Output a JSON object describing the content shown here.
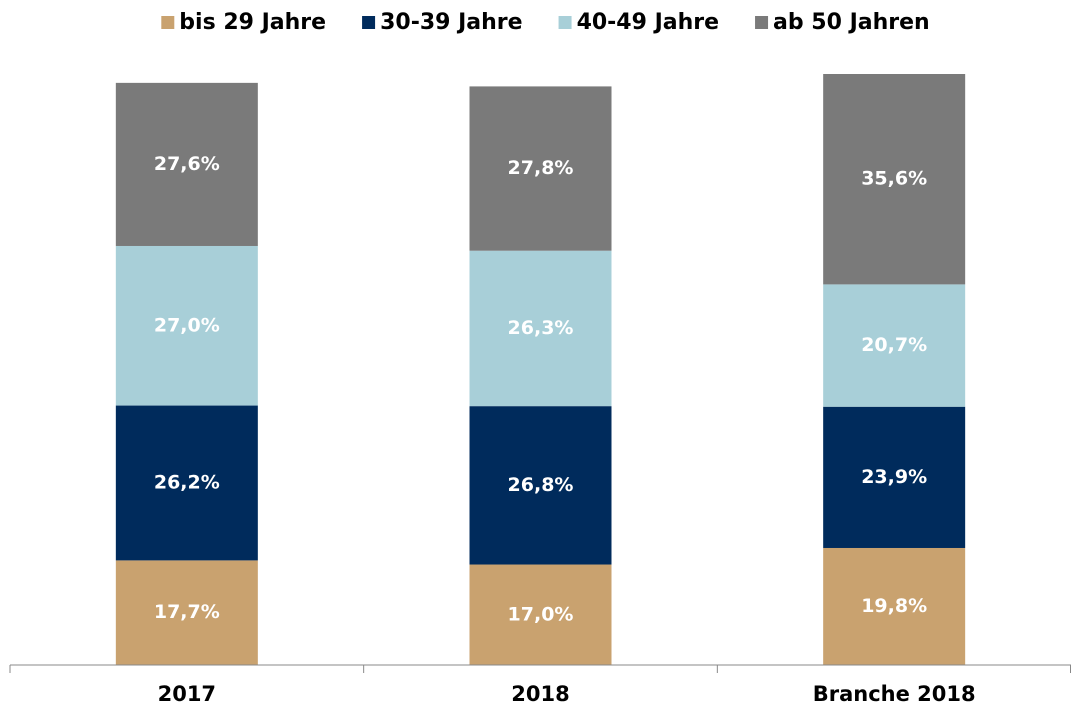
{
  "chart_data": {
    "type": "stacked_bar",
    "categories": [
      "2017",
      "2018",
      "Branche 2018"
    ],
    "series": [
      {
        "name": "bis 29 Jahre",
        "color": "#c9a26f",
        "values": [
          17.7,
          17.0,
          19.8
        ],
        "value_labels": [
          "17,7%",
          "17,0%",
          "19,8%"
        ]
      },
      {
        "name": "30-39 Jahre",
        "color": "#002b5c",
        "values": [
          26.2,
          26.8,
          23.9
        ],
        "value_labels": [
          "26,2%",
          "26,8%",
          "23,9%"
        ]
      },
      {
        "name": "40-49 Jahre",
        "color": "#a8cfd8",
        "values": [
          27.0,
          26.3,
          20.7
        ],
        "value_labels": [
          "27,0%",
          "26,3%",
          "20,7%"
        ]
      },
      {
        "name": "ab 50 Jahren",
        "color": "#7a7a7a",
        "values": [
          27.6,
          27.8,
          35.6
        ],
        "value_labels": [
          "27,6%",
          "27,8%",
          "35,6%"
        ]
      }
    ],
    "ylim": [
      0,
      100
    ],
    "legend": "top"
  }
}
